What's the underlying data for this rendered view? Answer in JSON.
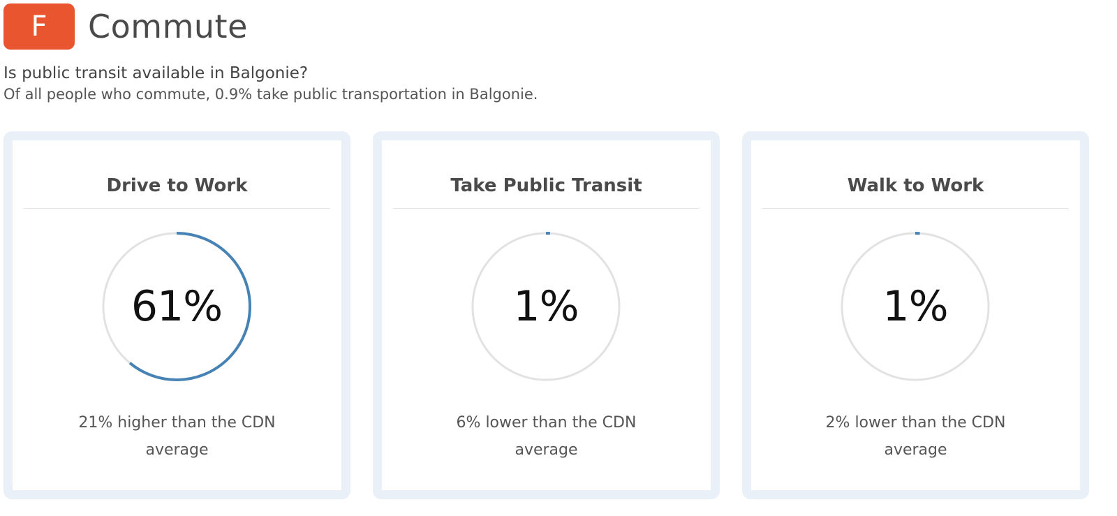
{
  "header": {
    "grade": "F",
    "title": "Commute"
  },
  "question": "Is public transit available in Balgonie?",
  "answer": "Of all people who commute, 0.9% take public transportation in Balgonie.",
  "colors": {
    "grade_badge": "#e8552f",
    "gauge_fill": "#4682b4",
    "gauge_track": "#e2e2e2",
    "card_border": "#e9f0f7"
  },
  "cards": [
    {
      "title": "Drive to Work",
      "value_label": "61%",
      "value": 0.61,
      "comparison": "21% higher than the CDN average"
    },
    {
      "title": "Take Public Transit",
      "value_label": "1%",
      "value": 0.009,
      "comparison": "6% lower than the CDN average"
    },
    {
      "title": "Walk to Work",
      "value_label": "1%",
      "value": 0.01,
      "comparison": "2% lower than the CDN average"
    }
  ]
}
